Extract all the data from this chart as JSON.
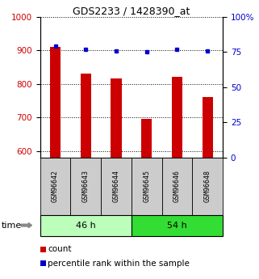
{
  "title": "GDS2233 / 1428390_at",
  "samples": [
    "GSM96642",
    "GSM96643",
    "GSM96644",
    "GSM96645",
    "GSM96646",
    "GSM96648"
  ],
  "counts": [
    910,
    830,
    815,
    695,
    820,
    760
  ],
  "percentiles": [
    79,
    77,
    76,
    75,
    77,
    76
  ],
  "ylim_left": [
    580,
    1000
  ],
  "ylim_right": [
    0,
    100
  ],
  "yticks_left": [
    600,
    700,
    800,
    900,
    1000
  ],
  "yticks_right": [
    0,
    25,
    50,
    75,
    100
  ],
  "bar_color": "#cc0000",
  "dot_color": "#0000cc",
  "group1_label": "46 h",
  "group2_label": "54 h",
  "group1_indices": [
    0,
    1,
    2
  ],
  "group2_indices": [
    3,
    4,
    5
  ],
  "group1_bg": "#bbffbb",
  "group2_bg": "#33dd33",
  "sample_bg": "#cccccc",
  "legend_count_label": "count",
  "legend_pct_label": "percentile rank within the sample",
  "time_label": "time",
  "bar_width": 0.35
}
